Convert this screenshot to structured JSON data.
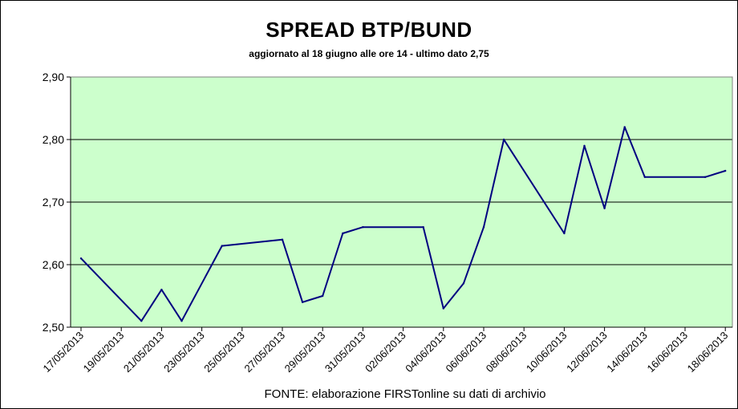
{
  "chart_data": {
    "type": "line",
    "title": "SPREAD  BTP/BUND",
    "subtitle": "aggiornato al 18 giugno alle ore 14 -  ultimo dato 2,75",
    "source": "FONTE: elaborazione FIRSTonline su dati di archivio",
    "ylim": [
      2.5,
      2.9
    ],
    "yticks": [
      "2,50",
      "2,60",
      "2,70",
      "2,80",
      "2,90"
    ],
    "x_tick_labels": [
      "17/05/2013",
      "19/05/2013",
      "21/05/2013",
      "23/05/2013",
      "25/05/2013",
      "27/05/2013",
      "29/05/2013",
      "31/05/2013",
      "02/06/2013",
      "04/06/2013",
      "06/06/2013",
      "08/06/2013",
      "10/06/2013",
      "12/06/2013",
      "14/06/2013",
      "16/06/2013",
      "18/06/2013"
    ],
    "grid": true,
    "plot_background": "#ccffcc",
    "line_color": "#000080",
    "series": [
      {
        "values": [
          {
            "x": "17/05/2013",
            "y": 2.61
          },
          {
            "x": "20/05/2013",
            "y": 2.51
          },
          {
            "x": "21/05/2013",
            "y": 2.56
          },
          {
            "x": "22/05/2013",
            "y": 2.51
          },
          {
            "x": "24/05/2013",
            "y": 2.63
          },
          {
            "x": "27/05/2013",
            "y": 2.64
          },
          {
            "x": "28/05/2013",
            "y": 2.54
          },
          {
            "x": "29/05/2013",
            "y": 2.55
          },
          {
            "x": "30/05/2013",
            "y": 2.65
          },
          {
            "x": "31/05/2013",
            "y": 2.66
          },
          {
            "x": "03/06/2013",
            "y": 2.66
          },
          {
            "x": "04/06/2013",
            "y": 2.53
          },
          {
            "x": "05/06/2013",
            "y": 2.57
          },
          {
            "x": "06/06/2013",
            "y": 2.66
          },
          {
            "x": "07/06/2013",
            "y": 2.8
          },
          {
            "x": "10/06/2013",
            "y": 2.65
          },
          {
            "x": "11/06/2013",
            "y": 2.79
          },
          {
            "x": "12/06/2013",
            "y": 2.69
          },
          {
            "x": "13/06/2013",
            "y": 2.82
          },
          {
            "x": "14/06/2013",
            "y": 2.74
          },
          {
            "x": "17/06/2013",
            "y": 2.74
          },
          {
            "x": "18/06/2013",
            "y": 2.75
          }
        ]
      }
    ]
  }
}
